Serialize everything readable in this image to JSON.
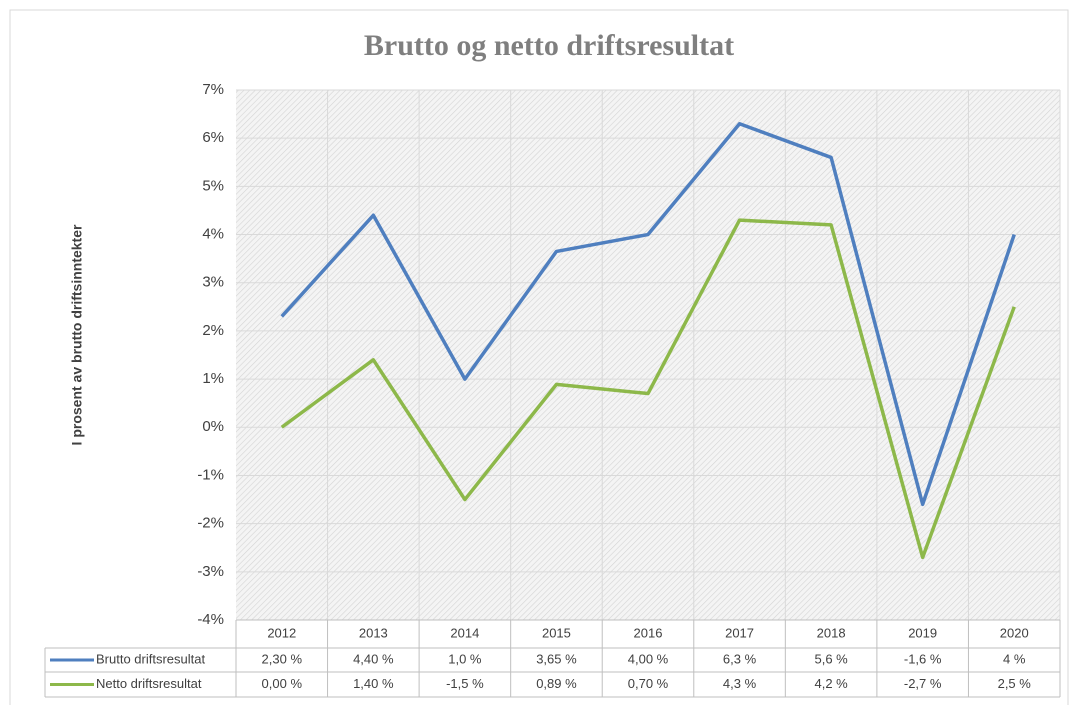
{
  "chart_data": {
    "type": "line",
    "title": "Brutto og netto driftsresultat",
    "y_label": "I prosent av brutto driftsinntekter",
    "categories": [
      "2012",
      "2013",
      "2014",
      "2015",
      "2016",
      "2017",
      "2018",
      "2019",
      "2020"
    ],
    "series": [
      {
        "name": "Brutto driftsresultat",
        "color": "#4f7fbf",
        "values": [
          2.3,
          4.4,
          1.0,
          3.65,
          4.0,
          6.3,
          5.6,
          -1.6,
          4
        ],
        "value_labels": [
          "2,30 %",
          "4,40 %",
          "1,0 %",
          "3,65 %",
          "4,00 %",
          "6,3 %",
          "5,6 %",
          "-1,6 %",
          "4 %"
        ]
      },
      {
        "name": "Netto driftsresultat",
        "color": "#8db84a",
        "values": [
          0.0,
          1.4,
          -1.5,
          0.89,
          0.7,
          4.3,
          4.2,
          -2.7,
          2.5
        ],
        "value_labels": [
          "0,00 %",
          "1,40 %",
          "-1,5 %",
          "0,89 %",
          "0,70 %",
          "4,3 %",
          "4,2 %",
          "-2,7 %",
          "2,5 %"
        ]
      }
    ],
    "ylim": [
      -4,
      7
    ],
    "yticks": [
      {
        "value": -4,
        "label": "-4%"
      },
      {
        "value": -3,
        "label": "-3%"
      },
      {
        "value": -2,
        "label": "-2%"
      },
      {
        "value": -1,
        "label": "-1%"
      },
      {
        "value": 0,
        "label": "0%"
      },
      {
        "value": 1,
        "label": "1%"
      },
      {
        "value": 2,
        "label": "2%"
      },
      {
        "value": 3,
        "label": "3%"
      },
      {
        "value": 4,
        "label": "4%"
      },
      {
        "value": 5,
        "label": "5%"
      },
      {
        "value": 6,
        "label": "6%"
      },
      {
        "value": 7,
        "label": "7%"
      }
    ],
    "grid": true
  }
}
